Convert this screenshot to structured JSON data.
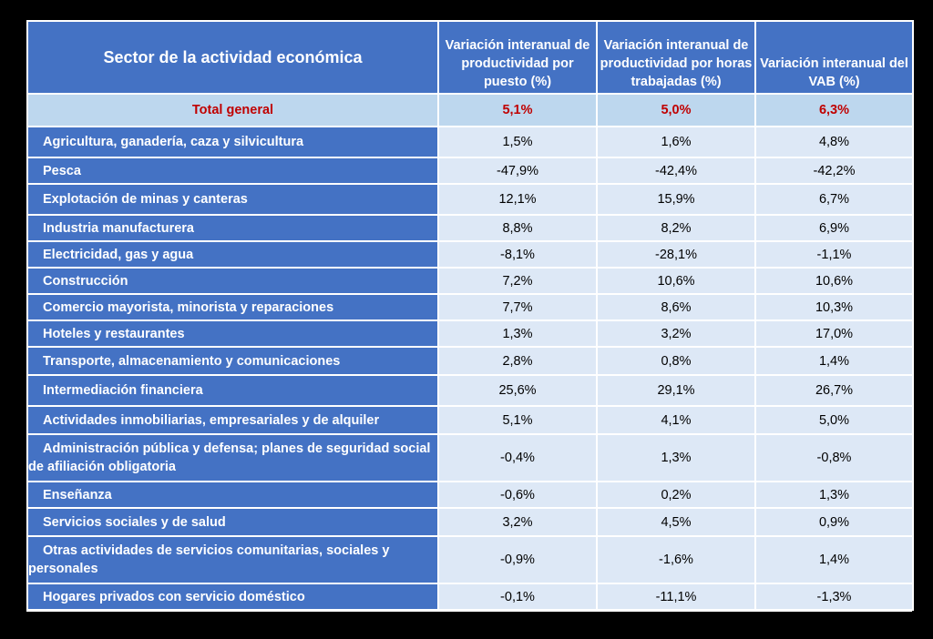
{
  "table": {
    "headers": {
      "sector": "Sector de la actividad económica",
      "col1": "Variación interanual de productividad por puesto (%)",
      "col2": "Variación interanual de productividad por horas trabajadas (%)",
      "col3": "Variación interanual del VAB (%)"
    },
    "total": {
      "label": "Total general",
      "v1": "5,1%",
      "v2": "5,0%",
      "v3": "6,3%"
    },
    "rows": [
      {
        "label": "Agricultura, ganadería, caza y silvicultura",
        "v1": "1,5%",
        "v2": "1,6%",
        "v3": "4,8%"
      },
      {
        "label": "Pesca",
        "v1": "-47,9%",
        "v2": "-42,4%",
        "v3": "-42,2%"
      },
      {
        "label": "Explotación de minas y canteras",
        "v1": "12,1%",
        "v2": "15,9%",
        "v3": "6,7%"
      },
      {
        "label": "Industria manufacturera",
        "v1": "8,8%",
        "v2": "8,2%",
        "v3": "6,9%"
      },
      {
        "label": "Electricidad, gas y agua",
        "v1": "-8,1%",
        "v2": "-28,1%",
        "v3": "-1,1%"
      },
      {
        "label": "Construcción",
        "v1": "7,2%",
        "v2": "10,6%",
        "v3": "10,6%"
      },
      {
        "label": "Comercio mayorista, minorista y reparaciones",
        "v1": "7,7%",
        "v2": "8,6%",
        "v3": "10,3%"
      },
      {
        "label": "Hoteles y restaurantes",
        "v1": "1,3%",
        "v2": "3,2%",
        "v3": "17,0%"
      },
      {
        "label": "Transporte, almacenamiento y comunicaciones",
        "v1": "2,8%",
        "v2": "0,8%",
        "v3": "1,4%"
      },
      {
        "label": "Intermediación financiera",
        "v1": "25,6%",
        "v2": "29,1%",
        "v3": "26,7%"
      },
      {
        "label": "Actividades inmobiliarias, empresariales y de alquiler",
        "v1": "5,1%",
        "v2": "4,1%",
        "v3": "5,0%"
      },
      {
        "label": "Administración pública y defensa; planes de seguridad social de afiliación obligatoria",
        "v1": "-0,4%",
        "v2": "1,3%",
        "v3": "-0,8%"
      },
      {
        "label": "Enseñanza",
        "v1": "-0,6%",
        "v2": "0,2%",
        "v3": "1,3%"
      },
      {
        "label": "Servicios sociales y de salud",
        "v1": "3,2%",
        "v2": "4,5%",
        "v3": "0,9%"
      },
      {
        "label": "Otras actividades de servicios comunitarias, sociales y personales",
        "v1": "-0,9%",
        "v2": "-1,6%",
        "v3": "1,4%"
      },
      {
        "label": "Hogares privados con servicio doméstico",
        "v1": "-0,1%",
        "v2": "-11,1%",
        "v3": "-1,3%"
      }
    ]
  },
  "colors": {
    "header_bg": "#4472c4",
    "total_bg": "#bdd7ee",
    "total_text": "#c00000",
    "value_bg": "#dde8f6",
    "frame_bg": "#000000"
  }
}
